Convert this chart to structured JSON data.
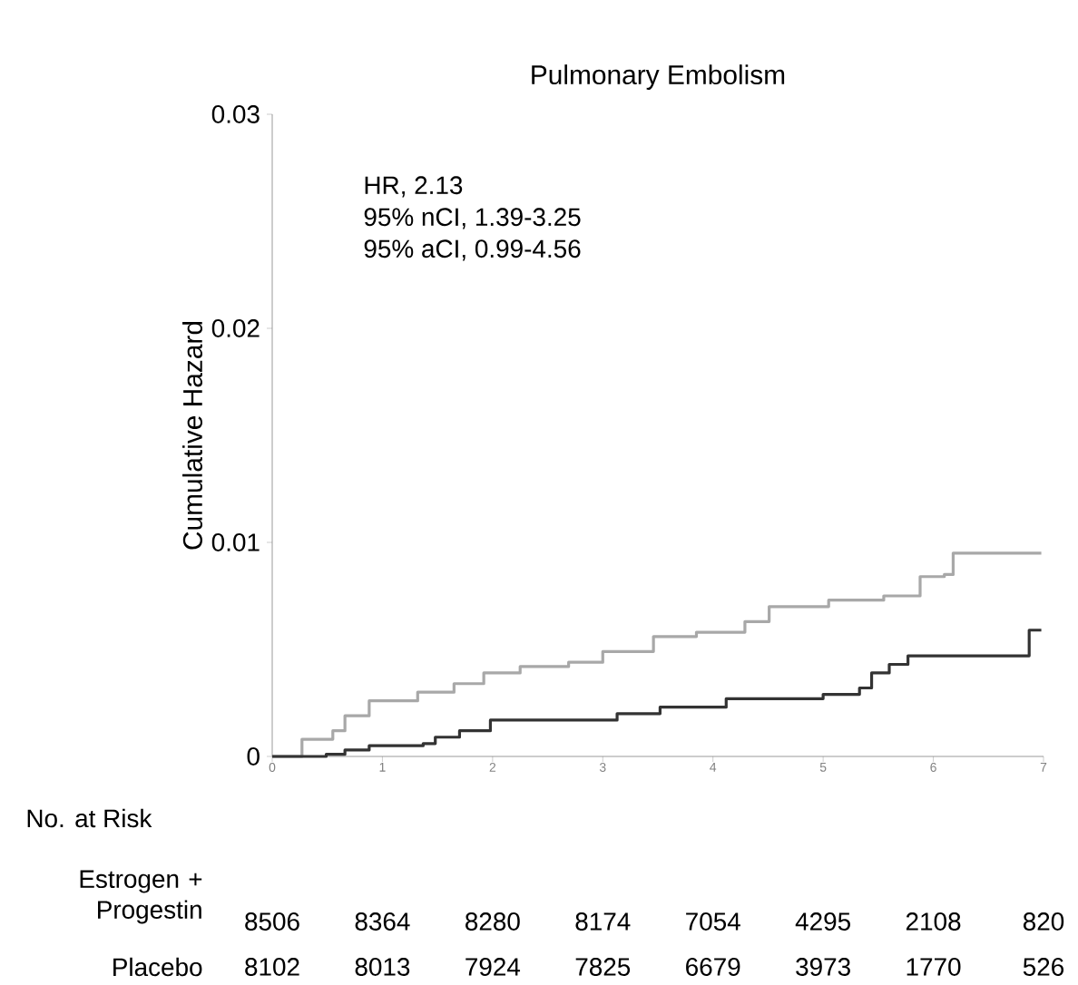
{
  "chart_data": {
    "type": "step",
    "title": "Pulmonary Embolism",
    "ylabel": "Cumulative Hazard",
    "xlim": [
      0,
      7
    ],
    "xticks": [
      0,
      1,
      2,
      3,
      4,
      5,
      6,
      7
    ],
    "ylim": [
      0,
      0.03
    ],
    "yticks": [
      0,
      0.01,
      0.02,
      0.03
    ],
    "series": [
      {
        "color": "#a8a8a8",
        "x": [
          0,
          0.27,
          0.55,
          0.66,
          0.88,
          1.32,
          1.65,
          1.92,
          2.25,
          2.69,
          3.0,
          3.46,
          3.85,
          4.29,
          4.51,
          5.05,
          5.55,
          5.88,
          6.1,
          6.18,
          6.98
        ],
        "values": [
          0,
          0.0008,
          0.0012,
          0.0019,
          0.0026,
          0.003,
          0.0034,
          0.0039,
          0.0042,
          0.0044,
          0.0049,
          0.0056,
          0.0058,
          0.0063,
          0.007,
          0.0073,
          0.0075,
          0.0084,
          0.0085,
          0.0095,
          0.0095
        ]
      },
      {
        "color": "#333333",
        "x": [
          0,
          0.49,
          0.66,
          0.88,
          1.37,
          1.48,
          1.7,
          1.98,
          2.91,
          3.13,
          3.52,
          4.12,
          5.0,
          5.33,
          5.44,
          5.6,
          5.77,
          6.84,
          6.87,
          6.98
        ],
        "values": [
          0,
          0.0001,
          0.0003,
          0.0005,
          0.0006,
          0.0009,
          0.0012,
          0.0017,
          0.0017,
          0.002,
          0.0023,
          0.0027,
          0.0029,
          0.0032,
          0.0039,
          0.0043,
          0.0047,
          0.0047,
          0.0059,
          0.0059
        ]
      }
    ],
    "annotations": [
      "HR, 2.13",
      "95% nCI, 1.39-3.25",
      "95% aCI, 0.99-4.56",
      "No. at Risk",
      "Estrogen + Progestin",
      "8506",
      "8364",
      "8280",
      "8174",
      "7054",
      "4295",
      "2108",
      "820",
      "Placebo",
      "8102",
      "8013",
      "7924",
      "7825",
      "6679",
      "3973",
      "1770",
      "526"
    ]
  }
}
